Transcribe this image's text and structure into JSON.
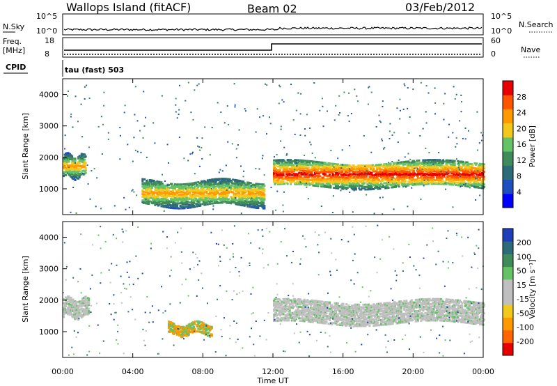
{
  "header": {
    "station": "Wallops Island (fitACF)",
    "beam": "Beam 02",
    "date": "03/Feb/2012"
  },
  "status_panel": {
    "nsky_label": "N.Sky",
    "nsky_ticks": [
      "10^5",
      "10^0"
    ],
    "nsearch_label": "N.Search",
    "nsearch_ticks": [
      "10^5",
      "10^0"
    ],
    "freq_label_1": "Freq.",
    "freq_label_2": "[MHz]",
    "freq_ticks": [
      "18",
      "8"
    ],
    "nave_label": "Nave",
    "nave_ticks": [
      "60",
      "0"
    ],
    "cpid_label": "CPID",
    "cpid_value": "tau (fast) 503"
  },
  "colors": {
    "power": [
      "#0000ff",
      "#1f4fbf",
      "#2e6b7a",
      "#3f8c5a",
      "#66c266",
      "#f2c81f",
      "#ff9900",
      "#ff5500",
      "#e60000"
    ],
    "velocity": [
      "#e60000",
      "#ff6600",
      "#ff9900",
      "#f2c81f",
      "#bfbfbf",
      "#bfbfbf",
      "#66c266",
      "#3f8c5a",
      "#2e6b7a",
      "#1f3fb8"
    ]
  },
  "chart_data": [
    {
      "type": "heatmap",
      "name": "power",
      "ylabel": "Slant Range [km]",
      "xlim": [
        0,
        24
      ],
      "ylim": [
        180,
        4500
      ],
      "yticks": [
        1000,
        2000,
        3000,
        4000
      ],
      "colorbar_label": "Power [dB]",
      "colorbar_ticks": [
        "4",
        "8",
        "12",
        "16",
        "20",
        "24",
        "28"
      ],
      "features": [
        {
          "t0": 0.0,
          "t1": 1.3,
          "r0": 1400,
          "r1": 2100,
          "level": "medium-high"
        },
        {
          "t0": 12.0,
          "t1": 24.0,
          "r0": 1100,
          "r1": 1900,
          "level": "high"
        },
        {
          "t0": 4.5,
          "t1": 11.5,
          "r0": 500,
          "r1": 1300,
          "level": "medium"
        }
      ]
    },
    {
      "type": "heatmap",
      "name": "velocity",
      "ylabel": "Slant Range [km]",
      "xlabel": "Time UT",
      "xlim": [
        0,
        24
      ],
      "ylim": [
        180,
        4500
      ],
      "yticks": [
        1000,
        2000,
        3000,
        4000
      ],
      "xticks": [
        "00:00",
        "04:00",
        "08:00",
        "12:00",
        "16:00",
        "20:00",
        "00:00"
      ],
      "colorbar_label": "Velocity [m s⁻¹]",
      "colorbar_ticks": [
        "-200",
        "-100",
        "-50",
        "-15",
        "15",
        "50",
        "100",
        "200"
      ],
      "features": [
        {
          "t0": 0.0,
          "t1": 1.5,
          "r0": 1500,
          "r1": 2100,
          "level": "near-zero"
        },
        {
          "t0": 12.0,
          "t1": 24.0,
          "r0": 1300,
          "r1": 2000,
          "level": "near-zero"
        },
        {
          "t0": 6.0,
          "t1": 8.5,
          "r0": 950,
          "r1": 1300,
          "level": "-50 to -15"
        }
      ]
    }
  ]
}
